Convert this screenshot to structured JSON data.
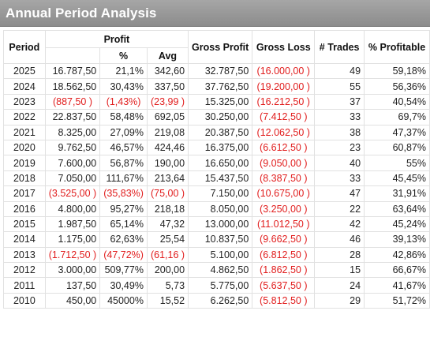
{
  "title": "Annual Period Analysis",
  "headers": {
    "period": "Period",
    "profit": "Profit",
    "pct": "%",
    "avg": "Avg",
    "gross_profit": "Gross Profit",
    "gross_loss": "Gross Loss",
    "trades": "# Trades",
    "pct_profitable": "% Profitable"
  },
  "colors": {
    "negative": "#e11d1d",
    "title_bar": "#999999",
    "title_text": "#ffffff"
  },
  "rows": [
    {
      "period": "2025",
      "profit": "16.787,50",
      "profit_neg": false,
      "pct": "21,1%",
      "pct_neg": false,
      "avg": "342,60",
      "avg_neg": false,
      "gross_profit": "32.787,50",
      "gross_loss": "(16.000,00 )",
      "trades": "49",
      "pct_profitable": "59,18%"
    },
    {
      "period": "2024",
      "profit": "18.562,50",
      "profit_neg": false,
      "pct": "30,43%",
      "pct_neg": false,
      "avg": "337,50",
      "avg_neg": false,
      "gross_profit": "37.762,50",
      "gross_loss": "(19.200,00 )",
      "trades": "55",
      "pct_profitable": "56,36%"
    },
    {
      "period": "2023",
      "profit": "(887,50 )",
      "profit_neg": true,
      "pct": "(1,43%)",
      "pct_neg": true,
      "avg": "(23,99 )",
      "avg_neg": true,
      "gross_profit": "15.325,00",
      "gross_loss": "(16.212,50 )",
      "trades": "37",
      "pct_profitable": "40,54%"
    },
    {
      "period": "2022",
      "profit": "22.837,50",
      "profit_neg": false,
      "pct": "58,48%",
      "pct_neg": false,
      "avg": "692,05",
      "avg_neg": false,
      "gross_profit": "30.250,00",
      "gross_loss": "(7.412,50 )",
      "trades": "33",
      "pct_profitable": "69,7%"
    },
    {
      "period": "2021",
      "profit": "8.325,00",
      "profit_neg": false,
      "pct": "27,09%",
      "pct_neg": false,
      "avg": "219,08",
      "avg_neg": false,
      "gross_profit": "20.387,50",
      "gross_loss": "(12.062,50 )",
      "trades": "38",
      "pct_profitable": "47,37%"
    },
    {
      "period": "2020",
      "profit": "9.762,50",
      "profit_neg": false,
      "pct": "46,57%",
      "pct_neg": false,
      "avg": "424,46",
      "avg_neg": false,
      "gross_profit": "16.375,00",
      "gross_loss": "(6.612,50 )",
      "trades": "23",
      "pct_profitable": "60,87%"
    },
    {
      "period": "2019",
      "profit": "7.600,00",
      "profit_neg": false,
      "pct": "56,87%",
      "pct_neg": false,
      "avg": "190,00",
      "avg_neg": false,
      "gross_profit": "16.650,00",
      "gross_loss": "(9.050,00 )",
      "trades": "40",
      "pct_profitable": "55%"
    },
    {
      "period": "2018",
      "profit": "7.050,00",
      "profit_neg": false,
      "pct": "111,67%",
      "pct_neg": false,
      "avg": "213,64",
      "avg_neg": false,
      "gross_profit": "15.437,50",
      "gross_loss": "(8.387,50 )",
      "trades": "33",
      "pct_profitable": "45,45%"
    },
    {
      "period": "2017",
      "profit": "(3.525,00 )",
      "profit_neg": true,
      "pct": "(35,83%)",
      "pct_neg": true,
      "avg": "(75,00 )",
      "avg_neg": true,
      "gross_profit": "7.150,00",
      "gross_loss": "(10.675,00 )",
      "trades": "47",
      "pct_profitable": "31,91%"
    },
    {
      "period": "2016",
      "profit": "4.800,00",
      "profit_neg": false,
      "pct": "95,27%",
      "pct_neg": false,
      "avg": "218,18",
      "avg_neg": false,
      "gross_profit": "8.050,00",
      "gross_loss": "(3.250,00 )",
      "trades": "22",
      "pct_profitable": "63,64%"
    },
    {
      "period": "2015",
      "profit": "1.987,50",
      "profit_neg": false,
      "pct": "65,14%",
      "pct_neg": false,
      "avg": "47,32",
      "avg_neg": false,
      "gross_profit": "13.000,00",
      "gross_loss": "(11.012,50 )",
      "trades": "42",
      "pct_profitable": "45,24%"
    },
    {
      "period": "2014",
      "profit": "1.175,00",
      "profit_neg": false,
      "pct": "62,63%",
      "pct_neg": false,
      "avg": "25,54",
      "avg_neg": false,
      "gross_profit": "10.837,50",
      "gross_loss": "(9.662,50 )",
      "trades": "46",
      "pct_profitable": "39,13%"
    },
    {
      "period": "2013",
      "profit": "(1.712,50 )",
      "profit_neg": true,
      "pct": "(47,72%)",
      "pct_neg": true,
      "avg": "(61,16 )",
      "avg_neg": true,
      "gross_profit": "5.100,00",
      "gross_loss": "(6.812,50 )",
      "trades": "28",
      "pct_profitable": "42,86%"
    },
    {
      "period": "2012",
      "profit": "3.000,00",
      "profit_neg": false,
      "pct": "509,77%",
      "pct_neg": false,
      "avg": "200,00",
      "avg_neg": false,
      "gross_profit": "4.862,50",
      "gross_loss": "(1.862,50 )",
      "trades": "15",
      "pct_profitable": "66,67%"
    },
    {
      "period": "2011",
      "profit": "137,50",
      "profit_neg": false,
      "pct": "30,49%",
      "pct_neg": false,
      "avg": "5,73",
      "avg_neg": false,
      "gross_profit": "5.775,00",
      "gross_loss": "(5.637,50 )",
      "trades": "24",
      "pct_profitable": "41,67%"
    },
    {
      "period": "2010",
      "profit": "450,00",
      "profit_neg": false,
      "pct": "45000%",
      "pct_neg": false,
      "avg": "15,52",
      "avg_neg": false,
      "gross_profit": "6.262,50",
      "gross_loss": "(5.812,50 )",
      "trades": "29",
      "pct_profitable": "51,72%"
    }
  ]
}
